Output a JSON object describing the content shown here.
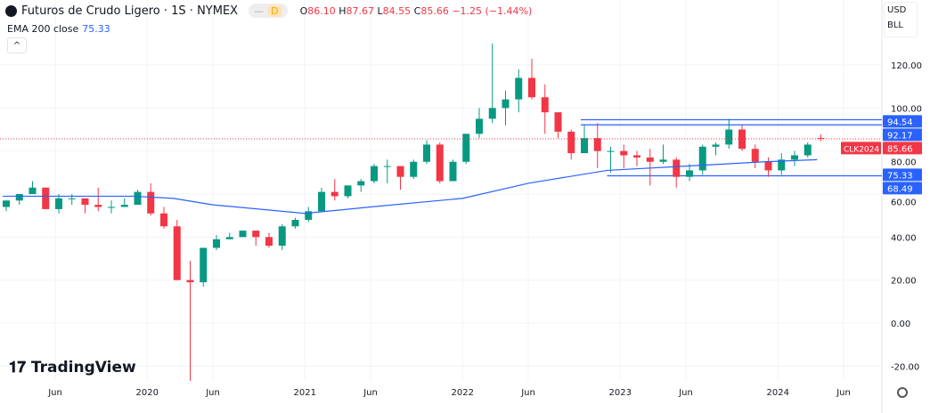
{
  "header": {
    "title": "Futuros de Crudo Ligero · 1S · NYMEX",
    "interval_badge": "D",
    "o_label": "O",
    "o": "86.10",
    "h_label": "H",
    "h": "87.67",
    "l_label": "L",
    "l": "84.55",
    "c_label": "C",
    "c": "85.66",
    "change": "−1.25 (−1.44%)"
  },
  "indicator": {
    "name": "EMA 200 close",
    "value": "75.33"
  },
  "axis_controls": {
    "currency": "USD",
    "unit": "BLL"
  },
  "branding": "TradingView",
  "colors": {
    "up": "#089981",
    "down": "#f23645",
    "ema": "#2962ff",
    "level": "#2962ff",
    "last": "#f23645"
  },
  "chart_data": {
    "type": "candlestick",
    "interval": "monthly approximation",
    "ylim": [
      -25,
      130
    ],
    "y_ticks": [
      "120.00",
      "100.00",
      "80.00",
      "60.00",
      "40.00",
      "20.00",
      "0.00",
      "-20.00"
    ],
    "y_tick_values": [
      120,
      100,
      80,
      60,
      40,
      20,
      0,
      -20
    ],
    "x_ticks": [
      {
        "label": "Jun",
        "date": "2019-06"
      },
      {
        "label": "2020",
        "date": "2020-01"
      },
      {
        "label": "Jun",
        "date": "2020-06"
      },
      {
        "label": "2021",
        "date": "2021-01"
      },
      {
        "label": "Jun",
        "date": "2021-06"
      },
      {
        "label": "2022",
        "date": "2022-01"
      },
      {
        "label": "Jun",
        "date": "2022-06"
      },
      {
        "label": "2023",
        "date": "2023-01"
      },
      {
        "label": "Jun",
        "date": "2023-06"
      },
      {
        "label": "2024",
        "date": "2024-01"
      },
      {
        "label": "Jun",
        "date": "2024-06"
      }
    ],
    "start": "2019-02",
    "ohlc": [
      [
        54,
        57,
        52,
        57
      ],
      [
        57,
        60,
        55,
        60
      ],
      [
        60,
        66,
        60,
        63
      ],
      [
        63,
        63,
        53,
        53
      ],
      [
        53,
        60,
        51,
        58
      ],
      [
        58,
        60,
        55,
        58
      ],
      [
        58,
        58,
        51,
        55
      ],
      [
        55,
        63,
        52,
        54
      ],
      [
        54,
        57,
        51,
        54
      ],
      [
        54,
        58,
        54,
        55
      ],
      [
        55,
        62,
        55,
        61
      ],
      [
        61,
        65,
        50,
        51
      ],
      [
        51,
        54,
        44,
        45
      ],
      [
        45,
        48,
        20,
        20
      ],
      [
        20,
        29,
        -37,
        19
      ],
      [
        19,
        35,
        17,
        35
      ],
      [
        35,
        41,
        34,
        39
      ],
      [
        39,
        42,
        39,
        40
      ],
      [
        40,
        43,
        40,
        43
      ],
      [
        43,
        43,
        36,
        40
      ],
      [
        40,
        42,
        35,
        36
      ],
      [
        36,
        46,
        34,
        45
      ],
      [
        45,
        49,
        44,
        48
      ],
      [
        48,
        54,
        47,
        52
      ],
      [
        52,
        63,
        52,
        61
      ],
      [
        61,
        67,
        57,
        59
      ],
      [
        59,
        64,
        58,
        64
      ],
      [
        64,
        67,
        61,
        66
      ],
      [
        66,
        74,
        65,
        73
      ],
      [
        73,
        76,
        65,
        73
      ],
      [
        73,
        73,
        62,
        68
      ],
      [
        68,
        76,
        67,
        75
      ],
      [
        75,
        85,
        74,
        83
      ],
      [
        83,
        84,
        65,
        66
      ],
      [
        66,
        76,
        66,
        75
      ],
      [
        75,
        88,
        74,
        88
      ],
      [
        88,
        100,
        86,
        95
      ],
      [
        95,
        130,
        93,
        100
      ],
      [
        100,
        108,
        92,
        104
      ],
      [
        104,
        118,
        98,
        114
      ],
      [
        114,
        123,
        104,
        105
      ],
      [
        105,
        111,
        88,
        98
      ],
      [
        98,
        97,
        86,
        89
      ],
      [
        89,
        90,
        76,
        79
      ],
      [
        79,
        92,
        79,
        86
      ],
      [
        86,
        93,
        72,
        80
      ],
      [
        80,
        82,
        70,
        80
      ],
      [
        80,
        83,
        72,
        78
      ],
      [
        78,
        80,
        73,
        77
      ],
      [
        77,
        81,
        64,
        75
      ],
      [
        75,
        83,
        74,
        76
      ],
      [
        76,
        77,
        63,
        68
      ],
      [
        68,
        74,
        66,
        71
      ],
      [
        71,
        83,
        69,
        82
      ],
      [
        82,
        84,
        78,
        83
      ],
      [
        83,
        95,
        81,
        90
      ],
      [
        90,
        92,
        80,
        81
      ],
      [
        81,
        83,
        72,
        75
      ],
      [
        75,
        77,
        68,
        71
      ],
      [
        71,
        79,
        69,
        76
      ],
      [
        76,
        80,
        73,
        78
      ],
      [
        78,
        84,
        77,
        83
      ],
      [
        86.1,
        87.67,
        84.55,
        85.66
      ]
    ],
    "ema200": [
      [
        "2019-02",
        59
      ],
      [
        "2019-12",
        59
      ],
      [
        "2020-03",
        58
      ],
      [
        "2020-06",
        55
      ],
      [
        "2021-01",
        51
      ],
      [
        "2021-06",
        54
      ],
      [
        "2022-01",
        58
      ],
      [
        "2022-06",
        65
      ],
      [
        "2022-12",
        71
      ],
      [
        "2023-06",
        73
      ],
      [
        "2023-12",
        75
      ],
      [
        "2024-04",
        76
      ]
    ],
    "levels": [
      {
        "value": 94.54,
        "label": "94.54",
        "from": "2022-10"
      },
      {
        "value": 92.17,
        "label": "92.17",
        "from": "2022-10"
      },
      {
        "value": 68.49,
        "label": "68.49",
        "from": "2022-12"
      }
    ],
    "ema_label": "75.33",
    "last_price": {
      "value": 85.66,
      "label": "85.66",
      "symbol": "CLK2024"
    }
  }
}
